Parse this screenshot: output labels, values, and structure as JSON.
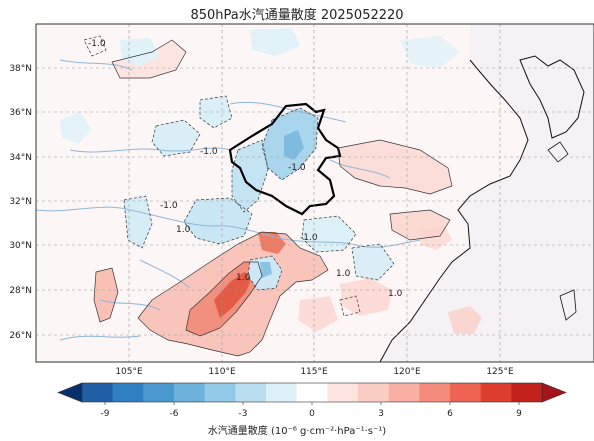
{
  "figure": {
    "title": "850hPa水汽通量散度 2025052220",
    "colorbar_label": "水汽通量散度 (10⁻⁶ g·cm⁻²·hPa⁻¹·s⁻¹)"
  },
  "map": {
    "lon_ticks": [
      "105°E",
      "110°E",
      "115°E",
      "120°E",
      "125°E"
    ],
    "lat_ticks": [
      "38°N",
      "36°N",
      "34°N",
      "32°N",
      "30°N",
      "28°N",
      "26°N"
    ],
    "contour_labels": [
      "-1.0",
      "1.0"
    ]
  },
  "colorbar": {
    "ticks": [
      "-9",
      "-6",
      "-3",
      "0",
      "3",
      "6",
      "9"
    ],
    "colors": [
      "#08306b",
      "#1f5fa8",
      "#2f7fc1",
      "#4a98d0",
      "#6cb2dc",
      "#92c9e6",
      "#b8def0",
      "#dcf0f8",
      "#ffffff",
      "#fde4e0",
      "#fbcdc4",
      "#f8b0a4",
      "#f48c7c",
      "#ed6552",
      "#de3e2e",
      "#c2221b",
      "#a3141b"
    ]
  }
}
